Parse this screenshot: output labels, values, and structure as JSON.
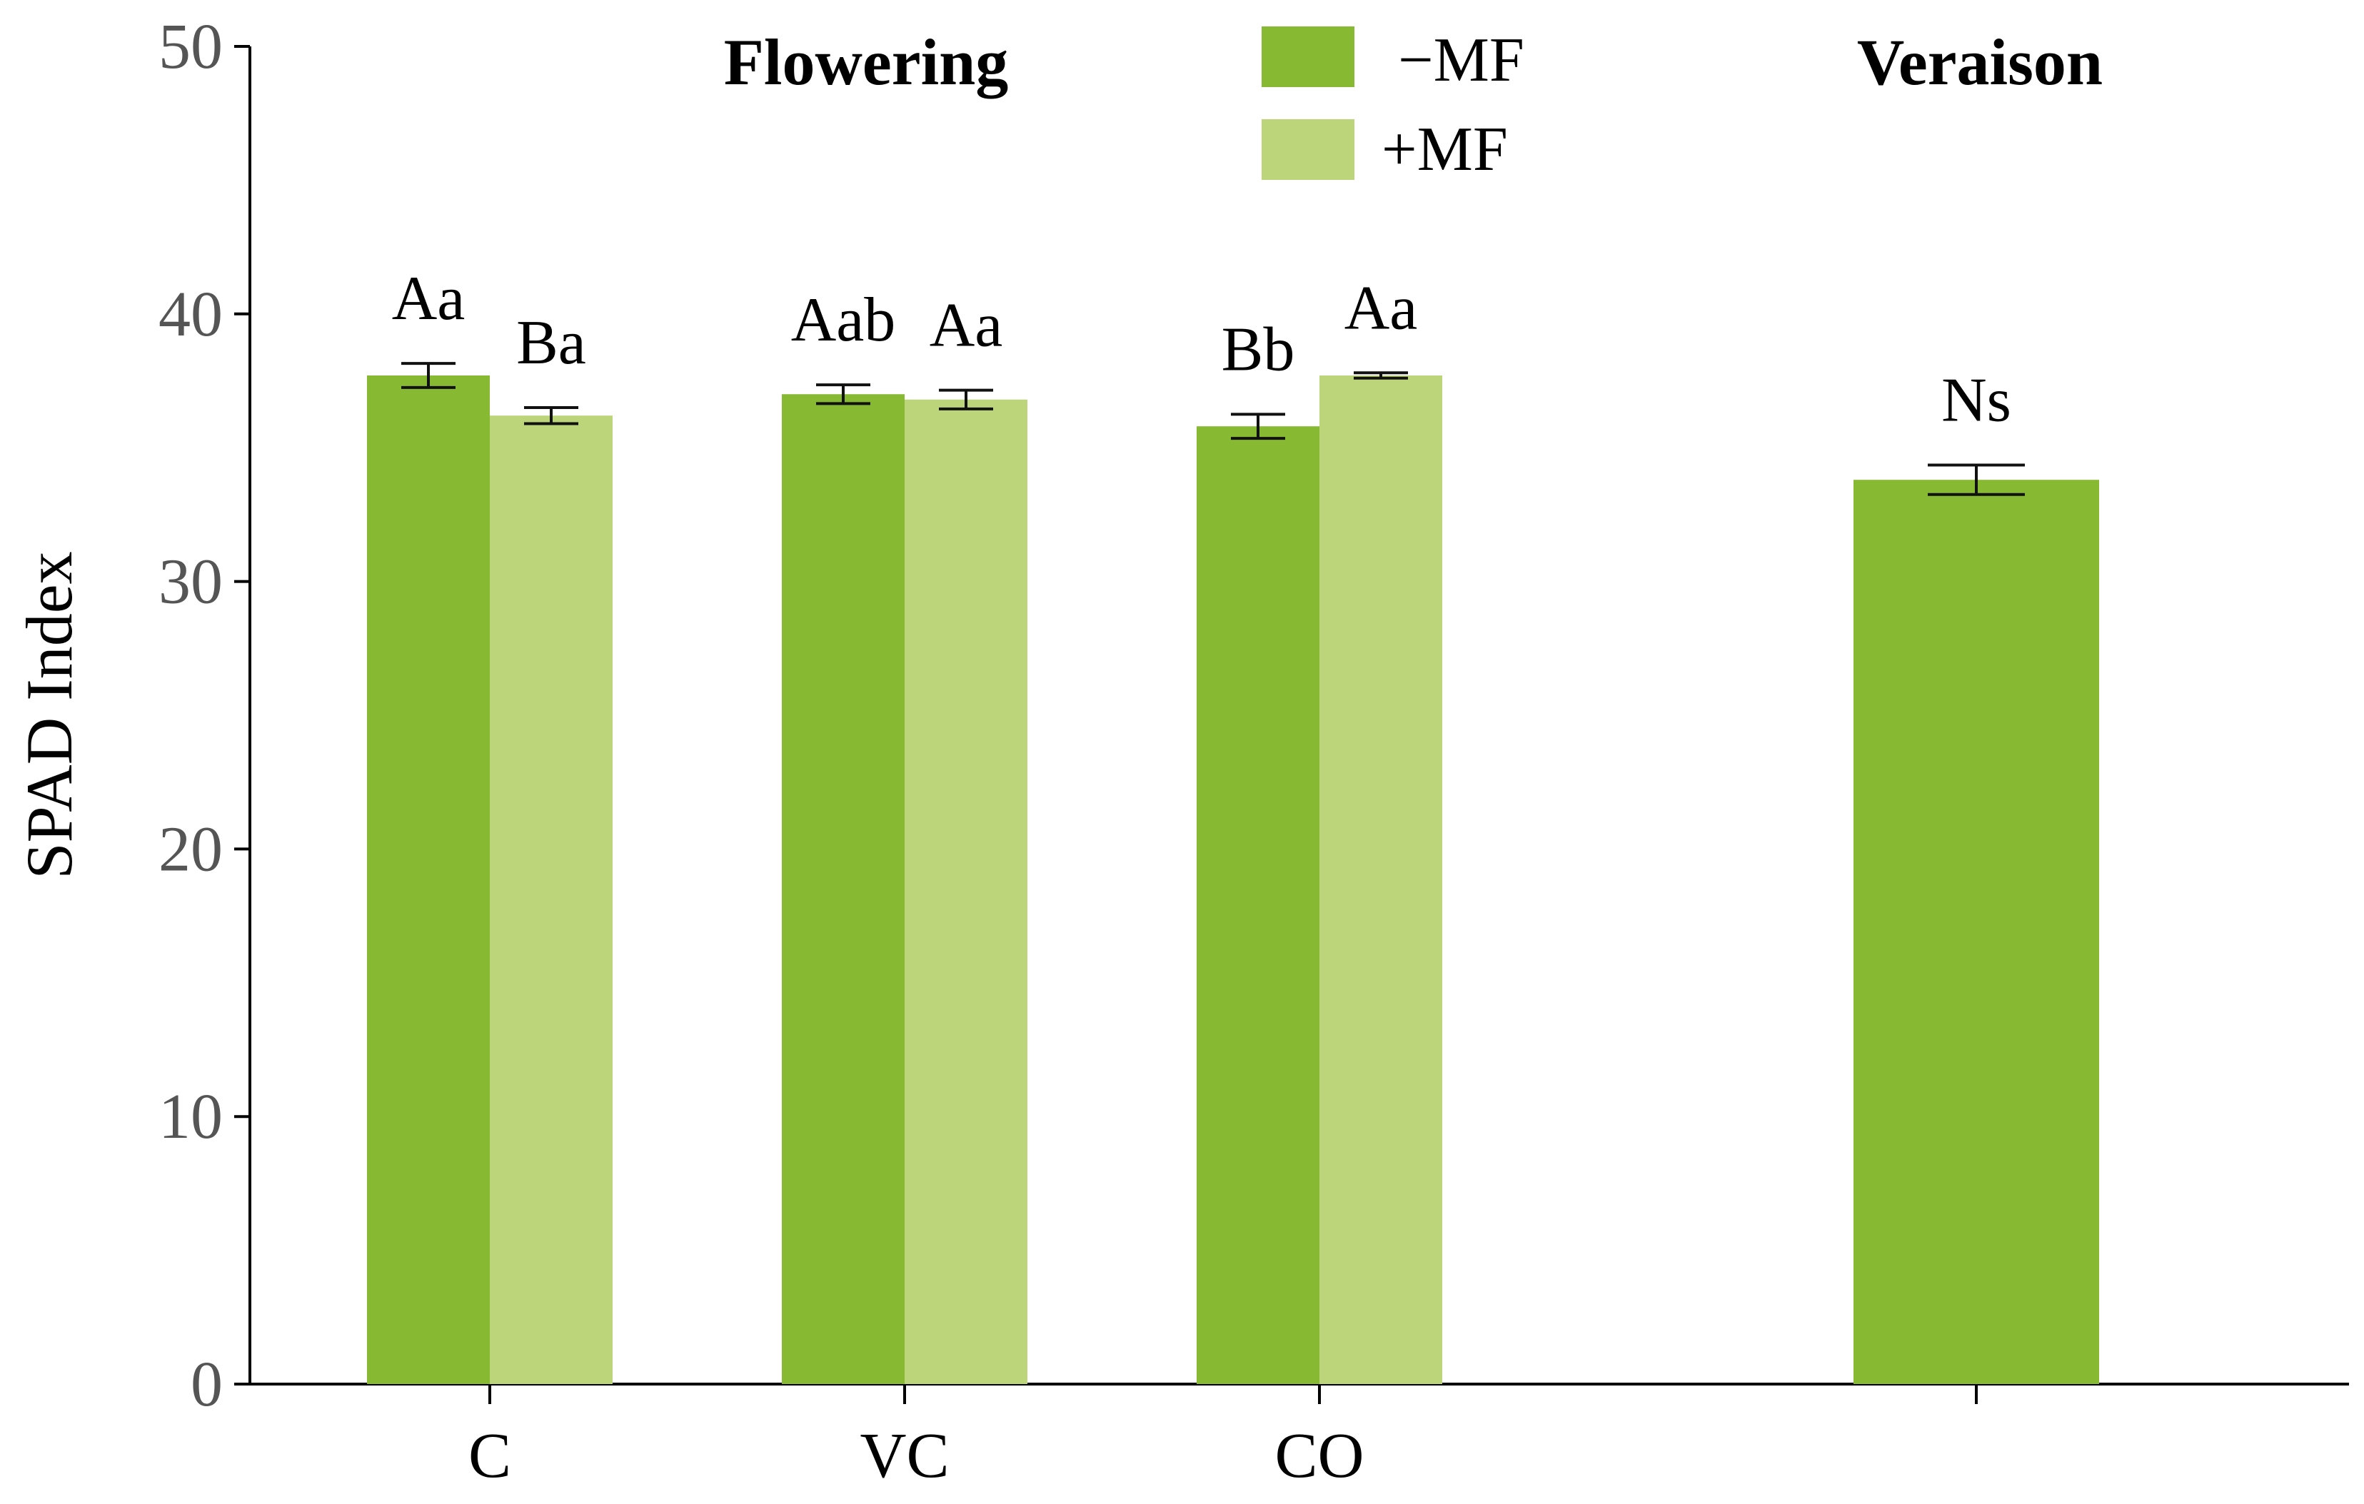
{
  "chart_data": {
    "type": "bar",
    "title": "",
    "xlabel": "",
    "ylabel": "SPAD Index",
    "ylim": [
      0,
      50
    ],
    "yticks": [
      "0",
      "10",
      "20",
      "30",
      "40",
      "50"
    ],
    "grid": false,
    "legend_position": "top-center",
    "colors": {
      "minus_mf": "#87b932",
      "plus_mf": "#bcd57b",
      "axis": "#000000",
      "tick_text": "#555555",
      "text": "#000000"
    },
    "panels": [
      {
        "name": "Flowering",
        "categories": [
          "C",
          "VC",
          "CO"
        ]
      },
      {
        "name": "Veraison",
        "categories": [
          ""
        ]
      }
    ],
    "series": [
      {
        "name": "−MF",
        "color": "#87b932",
        "points": [
          {
            "panel": "Flowering",
            "category": "C",
            "value": 37.7,
            "error": 0.45,
            "label": "Aa"
          },
          {
            "panel": "Flowering",
            "category": "VC",
            "value": 37.0,
            "error": 0.35,
            "label": "Aab"
          },
          {
            "panel": "Flowering",
            "category": "CO",
            "value": 35.8,
            "error": 0.45,
            "label": "Bb"
          },
          {
            "panel": "Veraison",
            "category": "",
            "value": 33.8,
            "error": 0.55,
            "label": "Ns"
          }
        ]
      },
      {
        "name": "+MF",
        "color": "#bcd57b",
        "points": [
          {
            "panel": "Flowering",
            "category": "C",
            "value": 36.2,
            "error": 0.3,
            "label": "Ba"
          },
          {
            "panel": "Flowering",
            "category": "VC",
            "value": 36.8,
            "error": 0.35,
            "label": "Aa"
          },
          {
            "panel": "Flowering",
            "category": "CO",
            "value": 37.7,
            "error": 0.1,
            "label": "Aa"
          }
        ]
      }
    ]
  }
}
